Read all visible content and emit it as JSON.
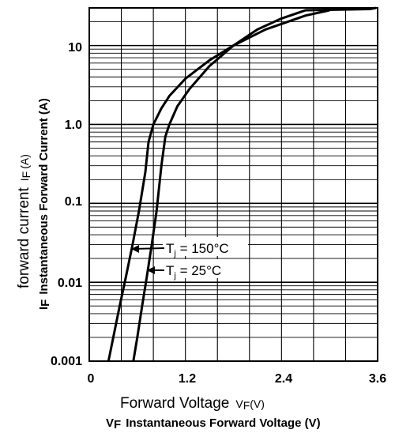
{
  "chart_data": {
    "type": "line",
    "xlabel_primary": "Forward Voltage",
    "xlabel_primary_sym": "V",
    "xlabel_primary_sub": "F",
    "xlabel_primary_unit": "(V)",
    "xlabel_secondary_sym": "V",
    "xlabel_secondary_sub": "F",
    "xlabel_secondary_text": "Instantaneous Forward Voltage (V)",
    "ylabel_primary": "forward current",
    "ylabel_primary_sym": "I",
    "ylabel_primary_sub": "F",
    "ylabel_primary_unit": "(A)",
    "ylabel_secondary_sym": "I",
    "ylabel_secondary_sub": "F",
    "ylabel_secondary_text": "Instantaneous Forward Current (A)",
    "x_ticks": [
      "0",
      "1.2",
      "2.4",
      "3.6"
    ],
    "y_ticks": [
      "0.001",
      "0.01",
      "0.1",
      "1.0",
      "10"
    ],
    "xlim": [
      0,
      3.6
    ],
    "ylim": [
      0.001,
      30
    ],
    "yscale": "log",
    "grid": true,
    "annotations": [
      {
        "sym": "T",
        "sub": "j",
        "text": " = 150°C"
      },
      {
        "sym": "T",
        "sub": "j",
        "text": " = 25°C"
      }
    ],
    "series": [
      {
        "points": [
          [
            0.24,
            0.001
          ],
          [
            0.3,
            0.002
          ],
          [
            0.38,
            0.005
          ],
          [
            0.46,
            0.012
          ],
          [
            0.54,
            0.03
          ],
          [
            0.62,
            0.08
          ],
          [
            0.7,
            0.25
          ],
          [
            0.74,
            0.6
          ],
          [
            0.8,
            1.0
          ],
          [
            0.9,
            1.6
          ],
          [
            1.0,
            2.3
          ],
          [
            1.2,
            3.8
          ],
          [
            1.5,
            6.5
          ],
          [
            1.8,
            10
          ],
          [
            2.2,
            16
          ],
          [
            2.7,
            24
          ],
          [
            3.0,
            28
          ]
        ]
      },
      {
        "points": [
          [
            0.55,
            0.001
          ],
          [
            0.6,
            0.002
          ],
          [
            0.66,
            0.005
          ],
          [
            0.72,
            0.012
          ],
          [
            0.78,
            0.03
          ],
          [
            0.84,
            0.08
          ],
          [
            0.9,
            0.3
          ],
          [
            0.95,
            0.7
          ],
          [
            1.0,
            1.0
          ],
          [
            1.1,
            1.7
          ],
          [
            1.25,
            2.8
          ],
          [
            1.5,
            5.5
          ],
          [
            1.8,
            10
          ],
          [
            2.1,
            16
          ],
          [
            2.4,
            22
          ],
          [
            2.7,
            28
          ],
          [
            3.5,
            29
          ],
          [
            3.58,
            30
          ]
        ]
      }
    ]
  }
}
